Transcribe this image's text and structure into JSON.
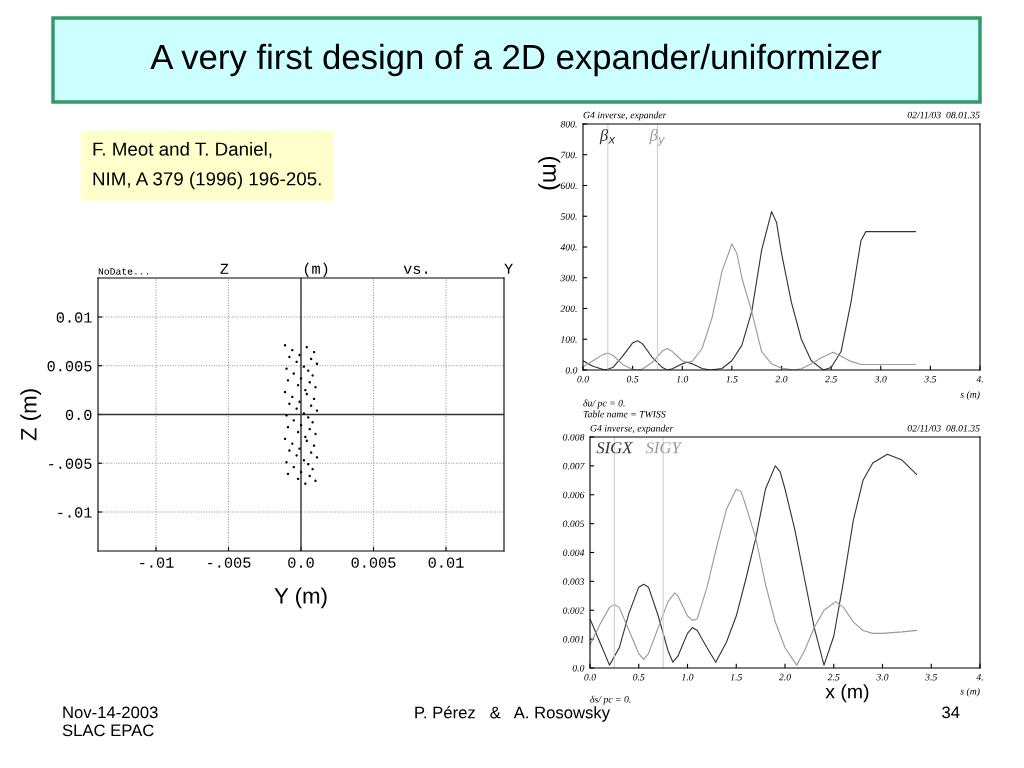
{
  "chart_data": [
    {
      "type": "other",
      "title": "A very first design of a 2D expander/uniformizer",
      "annotations": [
        "F. Meot and T. Daniel,\nNIM, A 379 (1996) 196-205.",
        "Nov-14-2003\nSLAC EPAC",
        "P. Pérez   &   A. Rosowsky",
        "34"
      ]
    },
    {
      "type": "scatter",
      "title": "Z        (m)        vs.        Y",
      "xlabel": "Y (m)",
      "ylabel": "Z (m)",
      "annotations": [
        "NoDate..."
      ],
      "xlim": [
        -0.014,
        0.014
      ],
      "ylim": [
        -0.014,
        0.014
      ],
      "grid": true,
      "marker": "circle",
      "xticks": [
        {
          "value": -0.01,
          "label": "-.01"
        },
        {
          "value": -0.005,
          "label": "-.005"
        },
        {
          "value": 0,
          "label": "0.0"
        },
        {
          "value": 0.005,
          "label": "0.005"
        },
        {
          "value": 0.01,
          "label": "0.01"
        }
      ],
      "yticks": [
        {
          "value": -0.01,
          "label": "-.01"
        },
        {
          "value": -0.005,
          "label": "-.005"
        },
        {
          "value": 0,
          "label": "0.0"
        },
        {
          "value": 0.005,
          "label": "0.005"
        },
        {
          "value": 0.01,
          "label": "0.01"
        }
      ],
      "series": [
        {
          "color": "#000000",
          "x": [
            -0.0011,
            0.0004,
            -0.0006,
            0.0009,
            -0.0001,
            -0.0008,
            0.0007,
            -0.0003,
            0.0011,
            0.0002,
            -0.001,
            0.0005,
            -0.0005,
            0.0008,
            0,
            -0.0009,
            0.0006,
            -0.0002,
            0.001,
            0.0003,
            -0.0011,
            0.0004,
            -0.0006,
            0.0009,
            -0.0001,
            -0.0008,
            0.0007,
            -0.0003,
            0.0011,
            0.0002,
            -0.001,
            0.0005,
            -0.0005,
            0.0008,
            0,
            -0.0009,
            0.0006,
            -0.0002,
            0.001,
            0.0003,
            -0.0011,
            0.0004,
            -0.0006,
            0.0009,
            -0.0001,
            -0.0008,
            0.0007,
            -0.0003,
            0.0011,
            0.0002,
            -0.001,
            0.0005,
            -0.0005,
            0.0008,
            0,
            -0.0009,
            0.0006,
            -0.0002,
            0.001,
            0.0003
          ],
          "values": [
            0.0071,
            0.0069,
            0.0066,
            0.0064,
            0.0061,
            0.0059,
            0.0057,
            0.0054,
            0.0052,
            0.0049,
            0.0047,
            0.0045,
            0.0042,
            0.004,
            0.0037,
            0.0035,
            0.0033,
            0.003,
            0.0028,
            0.0025,
            0.0023,
            0.0021,
            0.0018,
            0.0016,
            0.0013,
            0.0011,
            0.0009,
            0.0006,
            0.0004,
            0.0001,
            -0.0001,
            -0.0003,
            -0.0006,
            -0.0008,
            -0.0011,
            -0.0013,
            -0.0015,
            -0.0018,
            -0.002,
            -0.0023,
            -0.0025,
            -0.0027,
            -0.003,
            -0.0032,
            -0.0035,
            -0.0037,
            -0.0039,
            -0.0042,
            -0.0044,
            -0.0047,
            -0.0049,
            -0.0051,
            -0.0054,
            -0.0056,
            -0.0059,
            -0.0061,
            -0.0063,
            -0.0066,
            -0.0068,
            -0.0071
          ]
        }
      ]
    },
    {
      "type": "line",
      "ylabel": "(m)",
      "xlabel": "s (m)",
      "annotations": [
        "G4 inverse, expander",
        "02/11/03  08.01.35",
        "δu/ pc = 0.",
        "Table name = TWISS"
      ],
      "xlim": [
        0,
        4
      ],
      "ylim": [
        0,
        800
      ],
      "xticks": [
        {
          "value": 0,
          "label": "0.0"
        },
        {
          "value": 0.5,
          "label": "0.5"
        },
        {
          "value": 1,
          "label": "1.0"
        },
        {
          "value": 1.5,
          "label": "1.5"
        },
        {
          "value": 2,
          "label": "2.0"
        },
        {
          "value": 2.5,
          "label": "2.5"
        },
        {
          "value": 3,
          "label": "3.0"
        },
        {
          "value": 3.5,
          "label": "3.5"
        },
        {
          "value": 4,
          "label": "4."
        }
      ],
      "yticks": [
        {
          "value": 0,
          "label": "0.0"
        },
        {
          "value": 100,
          "label": "100."
        },
        {
          "value": 200,
          "label": "200."
        },
        {
          "value": 300,
          "label": "300."
        },
        {
          "value": 400,
          "label": "400."
        },
        {
          "value": 500,
          "label": "500."
        },
        {
          "value": 600,
          "label": "600."
        },
        {
          "value": 700,
          "label": "700."
        },
        {
          "value": 800,
          "label": "800."
        }
      ],
      "ref_lines": [
        {
          "axis": "x",
          "value": 0.25,
          "color": "#d0d0d0"
        },
        {
          "axis": "x",
          "value": 0.75,
          "color": "#d0d0d0"
        }
      ],
      "series": [
        {
          "name": "β$_{x}$",
          "color": "#333333",
          "x": [
            0,
            0.1,
            0.22,
            0.3,
            0.4,
            0.5,
            0.55,
            0.6,
            0.7,
            0.8,
            0.85,
            0.9,
            1.0,
            1.05,
            1.1,
            1.2,
            1.28,
            1.4,
            1.5,
            1.6,
            1.7,
            1.8,
            1.9,
            1.95,
            2.0,
            2.1,
            2.2,
            2.3,
            2.42,
            2.5,
            2.6,
            2.7,
            2.8,
            2.85,
            3.35
          ],
          "values": [
            30,
            12,
            0,
            8,
            45,
            88,
            95,
            85,
            40,
            8,
            0,
            4,
            20,
            25,
            20,
            5,
            0,
            5,
            30,
            80,
            190,
            390,
            515,
            480,
            380,
            220,
            100,
            30,
            0,
            8,
            60,
            220,
            420,
            450,
            450
          ]
        },
        {
          "name": "β$_{y}$",
          "color": "#999999",
          "x": [
            0,
            0.1,
            0.2,
            0.25,
            0.3,
            0.4,
            0.5,
            0.55,
            0.6,
            0.7,
            0.8,
            0.85,
            0.9,
            1.0,
            1.05,
            1.1,
            1.2,
            1.3,
            1.4,
            1.5,
            1.55,
            1.6,
            1.7,
            1.8,
            1.9,
            2.0,
            2.12,
            2.2,
            2.3,
            2.4,
            2.52,
            2.6,
            2.7,
            2.8,
            3.35
          ],
          "values": [
            10,
            30,
            50,
            55,
            48,
            18,
            2,
            0,
            3,
            25,
            62,
            70,
            60,
            30,
            25,
            28,
            70,
            170,
            320,
            410,
            380,
            300,
            190,
            60,
            20,
            6,
            0,
            4,
            20,
            40,
            58,
            45,
            28,
            18,
            18
          ]
        }
      ]
    },
    {
      "type": "line",
      "xlabel": "s (m)",
      "annotations": [
        "G4 inverse, expander",
        "02/11/03  08.01.35",
        "δs/ pc = 0.",
        "x (m)"
      ],
      "xlim": [
        0,
        4
      ],
      "ylim": [
        0,
        0.008
      ],
      "xticks": [
        {
          "value": 0,
          "label": "0.0"
        },
        {
          "value": 0.5,
          "label": "0.5"
        },
        {
          "value": 1,
          "label": "1.0"
        },
        {
          "value": 1.5,
          "label": "1.5"
        },
        {
          "value": 2,
          "label": "2.0"
        },
        {
          "value": 2.5,
          "label": "2.5"
        },
        {
          "value": 3,
          "label": "3.0"
        },
        {
          "value": 3.5,
          "label": "3.5"
        },
        {
          "value": 4,
          "label": "4."
        }
      ],
      "yticks": [
        {
          "value": 0,
          "label": "0.0"
        },
        0.001,
        0.002,
        0.003,
        0.004,
        0.005,
        0.006,
        0.007,
        0.008
      ],
      "ref_lines": [
        {
          "axis": "x",
          "value": 0.25,
          "color": "#d0d0d0"
        },
        {
          "axis": "x",
          "value": 0.75,
          "color": "#d0d0d0"
        }
      ],
      "series": [
        {
          "name": "SIGX",
          "color": "#333333",
          "x": [
            0,
            0.1,
            0.2,
            0.3,
            0.4,
            0.5,
            0.55,
            0.6,
            0.7,
            0.8,
            0.85,
            0.9,
            1.0,
            1.05,
            1.1,
            1.2,
            1.29,
            1.4,
            1.5,
            1.6,
            1.7,
            1.8,
            1.9,
            1.95,
            2.0,
            2.1,
            2.2,
            2.3,
            2.4,
            2.5,
            2.6,
            2.7,
            2.8,
            2.9,
            3.05,
            3.2,
            3.35
          ],
          "values": [
            0.0017,
            0.0009,
            0.0001,
            0.0007,
            0.0019,
            0.0028,
            0.0029,
            0.0028,
            0.0018,
            0.0006,
            0.0002,
            0.0004,
            0.0012,
            0.0014,
            0.0013,
            0.0007,
            0.0002,
            0.0009,
            0.0018,
            0.0031,
            0.0045,
            0.0062,
            0.007,
            0.0068,
            0.0062,
            0.0048,
            0.0031,
            0.0014,
            0.0001,
            0.0011,
            0.003,
            0.0051,
            0.0065,
            0.0071,
            0.0074,
            0.0072,
            0.0067
          ]
        },
        {
          "name": "SIGY",
          "color": "#999999",
          "x": [
            0,
            0.1,
            0.2,
            0.25,
            0.3,
            0.4,
            0.5,
            0.55,
            0.6,
            0.7,
            0.8,
            0.87,
            0.9,
            1.0,
            1.05,
            1.1,
            1.2,
            1.3,
            1.4,
            1.5,
            1.55,
            1.6,
            1.7,
            1.8,
            1.9,
            2.0,
            2.12,
            2.2,
            2.3,
            2.4,
            2.52,
            2.6,
            2.7,
            2.8,
            2.9,
            3.0,
            3.2,
            3.35
          ],
          "values": [
            0.0008,
            0.0015,
            0.0021,
            0.0022,
            0.0021,
            0.0013,
            0.0005,
            0.0003,
            0.0005,
            0.0014,
            0.0023,
            0.0026,
            0.0025,
            0.0018,
            0.00165,
            0.0017,
            0.0028,
            0.0042,
            0.0055,
            0.0062,
            0.0061,
            0.0056,
            0.0045,
            0.0029,
            0.0016,
            0.0007,
            0.0001,
            0.0006,
            0.0014,
            0.002,
            0.0023,
            0.0021,
            0.0016,
            0.0013,
            0.0012,
            0.0012,
            0.00125,
            0.0013
          ]
        }
      ]
    }
  ]
}
